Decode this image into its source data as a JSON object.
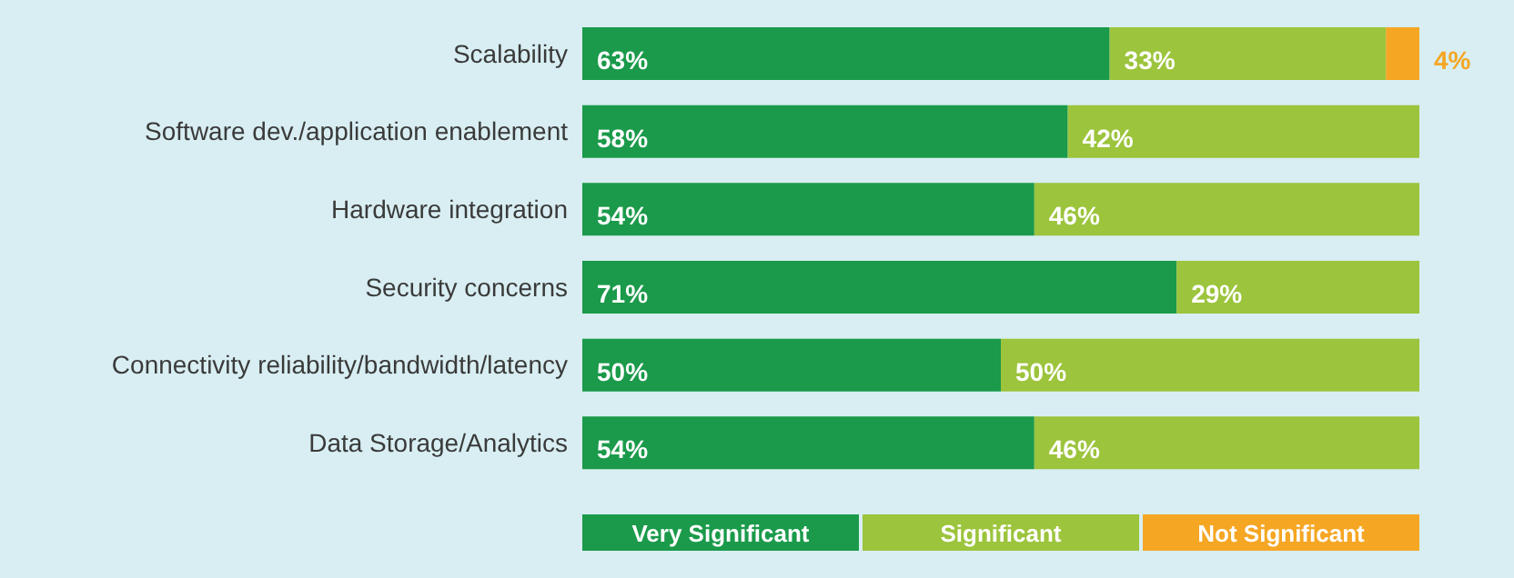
{
  "chart_data": {
    "type": "bar",
    "orientation": "horizontal",
    "stacked": true,
    "legend": "bottom",
    "categories": [
      "Scalability",
      "Software dev./application enablement",
      "Hardware integration",
      "Security concerns",
      "Connectivity reliability/bandwidth/latency",
      "Data Storage/Analytics"
    ],
    "series": [
      {
        "name": "Very Significant",
        "color": "#1a9a4a",
        "values": [
          63,
          58,
          54,
          71,
          50,
          54
        ],
        "value_labels": [
          "63%",
          "58%",
          "54%",
          "71%",
          "50%",
          "54%"
        ]
      },
      {
        "name": "Significant",
        "color": "#9cc43c",
        "values": [
          33,
          42,
          46,
          29,
          50,
          46
        ],
        "value_labels": [
          "33%",
          "42%",
          "46%",
          "29%",
          "50%",
          "46%"
        ]
      },
      {
        "name": "Not Significant",
        "color": "#f5a623",
        "values": [
          4,
          0,
          0,
          0,
          0,
          0
        ],
        "value_labels": [
          "4%",
          null,
          null,
          null,
          null,
          null
        ]
      }
    ]
  }
}
